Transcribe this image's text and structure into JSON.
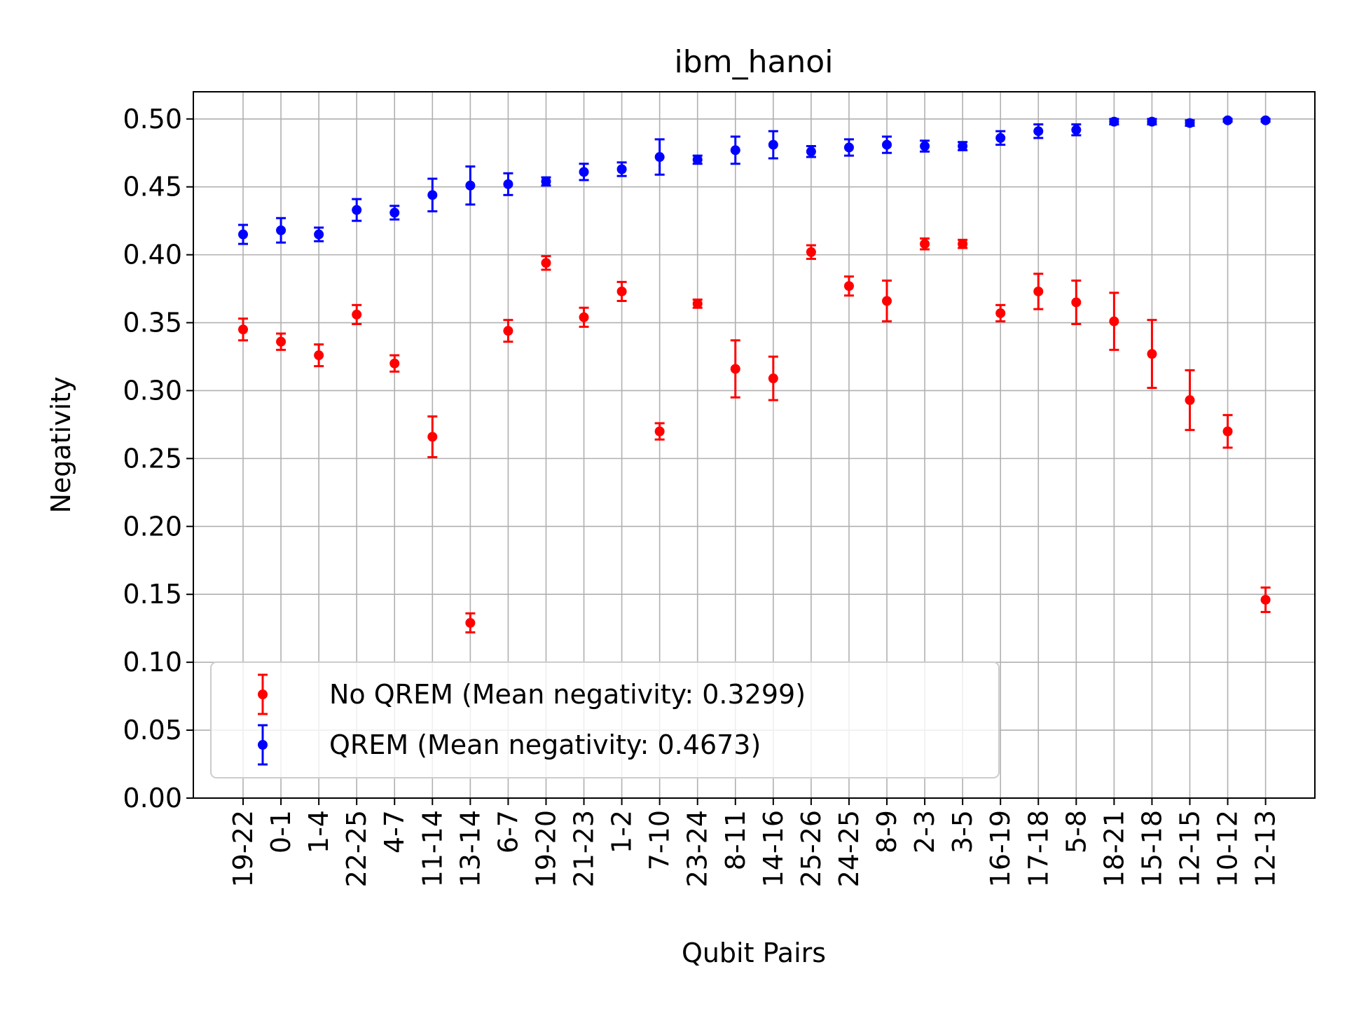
{
  "chart_data": {
    "type": "scatter",
    "title": "ibm_hanoi",
    "xlabel": "Qubit Pairs",
    "ylabel": "Negativity",
    "ylim": [
      0.0,
      0.52
    ],
    "yticks": [
      "0.00",
      "0.05",
      "0.10",
      "0.15",
      "0.20",
      "0.25",
      "0.30",
      "0.35",
      "0.40",
      "0.45",
      "0.50"
    ],
    "grid": true,
    "legend_position": "lower-left",
    "categories": [
      "19-22",
      "0-1",
      "1-4",
      "22-25",
      "4-7",
      "11-14",
      "13-14",
      "6-7",
      "19-20",
      "21-23",
      "1-2",
      "7-10",
      "23-24",
      "8-11",
      "14-16",
      "25-26",
      "24-25",
      "8-9",
      "2-3",
      "3-5",
      "16-19",
      "17-18",
      "5-8",
      "18-21",
      "15-18",
      "12-15",
      "10-12",
      "12-13"
    ],
    "series": [
      {
        "name": "No QREM (Mean negativity: 0.3299)",
        "color": "#ff0000",
        "values": [
          0.345,
          0.336,
          0.326,
          0.356,
          0.32,
          0.266,
          0.129,
          0.344,
          0.394,
          0.354,
          0.373,
          0.27,
          0.364,
          0.316,
          0.309,
          0.402,
          0.377,
          0.366,
          0.408,
          0.408,
          0.357,
          0.373,
          0.365,
          0.351,
          0.327,
          0.293,
          0.27,
          0.146
        ],
        "errors": [
          0.008,
          0.006,
          0.008,
          0.007,
          0.006,
          0.015,
          0.007,
          0.008,
          0.005,
          0.007,
          0.007,
          0.006,
          0.003,
          0.021,
          0.016,
          0.005,
          0.007,
          0.015,
          0.004,
          0.003,
          0.006,
          0.013,
          0.016,
          0.021,
          0.025,
          0.022,
          0.012,
          0.009
        ]
      },
      {
        "name": "QREM (Mean negativity: 0.4673)",
        "color": "#0000ff",
        "values": [
          0.415,
          0.418,
          0.415,
          0.433,
          0.431,
          0.444,
          0.451,
          0.452,
          0.454,
          0.461,
          0.463,
          0.472,
          0.47,
          0.477,
          0.481,
          0.476,
          0.479,
          0.481,
          0.48,
          0.48,
          0.486,
          0.491,
          0.492,
          0.498,
          0.498,
          0.497,
          0.499,
          0.499
        ],
        "errors": [
          0.007,
          0.009,
          0.005,
          0.008,
          0.005,
          0.012,
          0.014,
          0.008,
          0.003,
          0.006,
          0.005,
          0.013,
          0.003,
          0.01,
          0.01,
          0.004,
          0.006,
          0.006,
          0.004,
          0.003,
          0.005,
          0.005,
          0.004,
          0.002,
          0.002,
          0.002,
          0.001,
          0.001
        ]
      }
    ]
  }
}
